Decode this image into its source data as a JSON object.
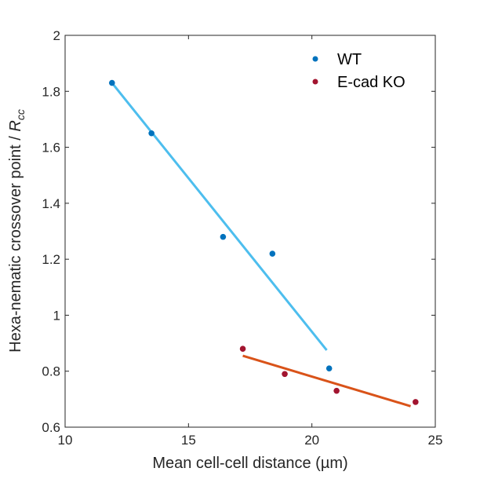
{
  "chart_data": {
    "type": "scatter",
    "xlabel": "Mean cell-cell distance (µm)",
    "ylabel": {
      "prefix": "Hexa-nematic crossover point / ",
      "symbol": "R",
      "subscript": "cc"
    },
    "xlim": [
      10,
      25
    ],
    "ylim": [
      0.6,
      2
    ],
    "xticks": [
      10,
      15,
      20,
      25
    ],
    "yticks": [
      0.6,
      0.8,
      1,
      1.2,
      1.4,
      1.6,
      1.8,
      2
    ],
    "grid": false,
    "legend_position": "top-right",
    "series": [
      {
        "name": "WT",
        "marker_color": "#0072BD",
        "points": [
          {
            "x": 11.9,
            "y": 1.83
          },
          {
            "x": 13.5,
            "y": 1.65
          },
          {
            "x": 16.4,
            "y": 1.28
          },
          {
            "x": 18.4,
            "y": 1.22
          },
          {
            "x": 20.7,
            "y": 0.81
          }
        ],
        "fit": {
          "color": "#4DBEEE",
          "x": [
            11.9,
            20.6
          ],
          "y": [
            1.83,
            0.875
          ]
        }
      },
      {
        "name": "E-cad KO",
        "marker_color": "#A2142F",
        "points": [
          {
            "x": 17.2,
            "y": 0.88
          },
          {
            "x": 18.9,
            "y": 0.79
          },
          {
            "x": 21.0,
            "y": 0.73
          },
          {
            "x": 24.2,
            "y": 0.69
          }
        ],
        "fit": {
          "color": "#D95319",
          "x": [
            17.2,
            24.0
          ],
          "y": [
            0.855,
            0.675
          ]
        }
      }
    ]
  }
}
